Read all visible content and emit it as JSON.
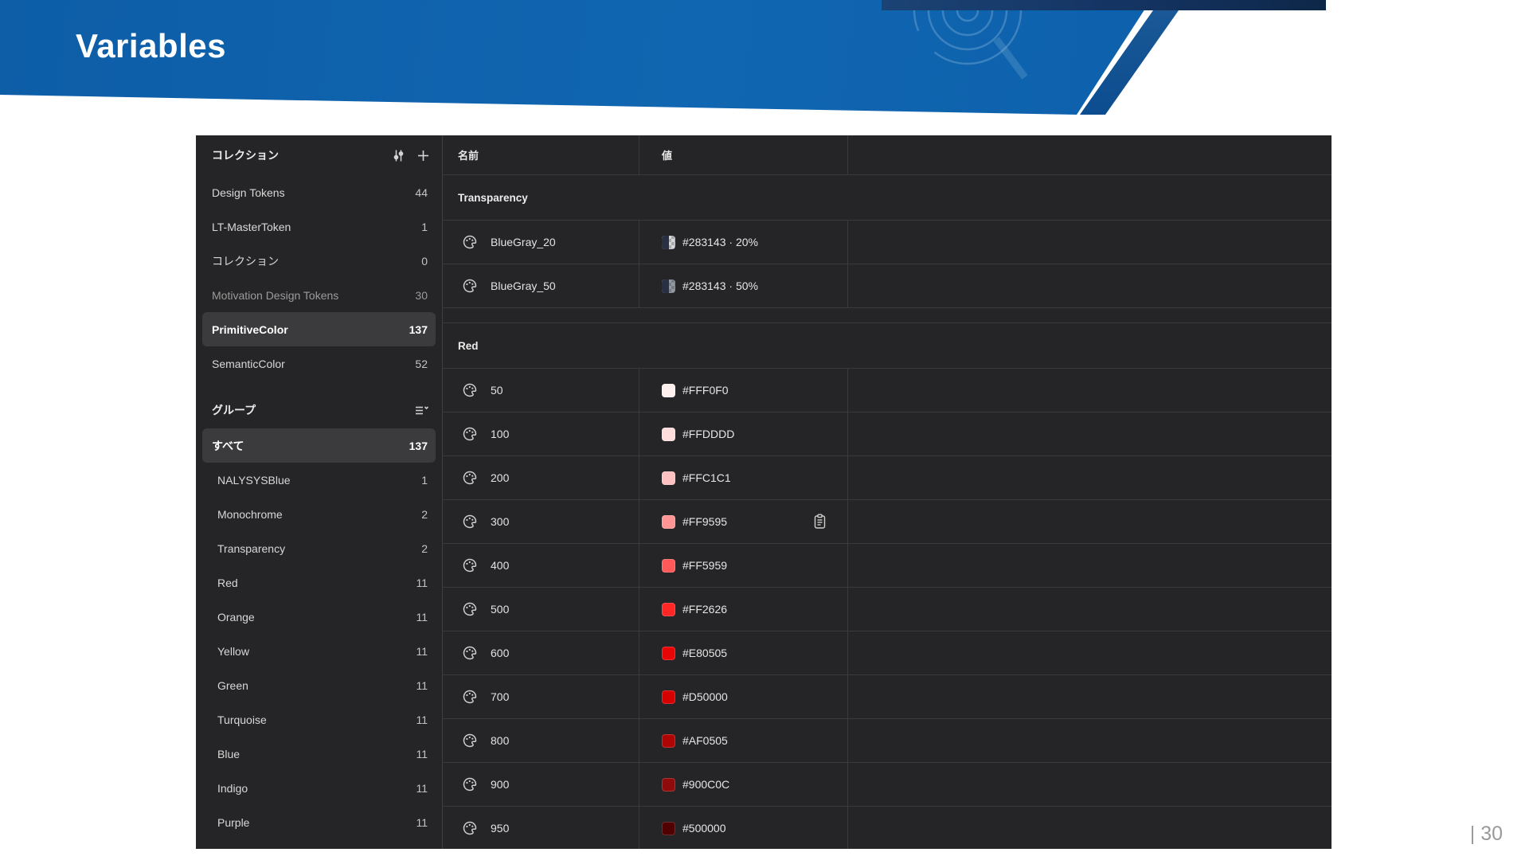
{
  "slide": {
    "title": "Variables",
    "page_number": "| 30",
    "header_colors": {
      "band_left": "#1166B1",
      "band_right": "#0A519B",
      "top_strip": "#143463",
      "diagonal_stripe": "#12538F"
    }
  },
  "panel": {
    "ui_colors": {
      "panel_bg": "#252527",
      "divider": "#3A3A3D",
      "selected_blue_bg": "#45516C",
      "selected_gray_bg": "#3B3B3D"
    },
    "collections": {
      "title": "コレクション",
      "header_icons": [
        "filter-sliders-icon",
        "add-icon"
      ],
      "items": [
        {
          "label": "Design Tokens",
          "count": "44",
          "state": "normal"
        },
        {
          "label": "LT-MasterToken",
          "count": "1",
          "state": "normal"
        },
        {
          "label": "コレクション",
          "count": "0",
          "state": "normal"
        },
        {
          "label": "Motivation Design Tokens",
          "count": "30",
          "state": "dim"
        },
        {
          "label": "PrimitiveColor",
          "count": "137",
          "state": "selected"
        },
        {
          "label": "SemanticColor",
          "count": "52",
          "state": "normal"
        }
      ]
    },
    "groups": {
      "title": "グループ",
      "header_icons": [
        "collapse-groups-icon"
      ],
      "items": [
        {
          "label": "すべて",
          "count": "137",
          "state": "selected"
        },
        {
          "label": "NALYSYSBlue",
          "count": "1",
          "state": "normal"
        },
        {
          "label": "Monochrome",
          "count": "2",
          "state": "normal"
        },
        {
          "label": "Transparency",
          "count": "2",
          "state": "normal"
        },
        {
          "label": "Red",
          "count": "11",
          "state": "normal"
        },
        {
          "label": "Orange",
          "count": "11",
          "state": "normal"
        },
        {
          "label": "Yellow",
          "count": "11",
          "state": "normal"
        },
        {
          "label": "Green",
          "count": "11",
          "state": "normal"
        },
        {
          "label": "Turquoise",
          "count": "11",
          "state": "normal"
        },
        {
          "label": "Blue",
          "count": "11",
          "state": "normal"
        },
        {
          "label": "Indigo",
          "count": "11",
          "state": "normal"
        },
        {
          "label": "Purple",
          "count": "11",
          "state": "normal"
        }
      ]
    },
    "table": {
      "columns": [
        "名前",
        "値"
      ],
      "row_icon": "palette-icon",
      "sections": [
        {
          "name": "Transparency",
          "rows": [
            {
              "name": "BlueGray_20",
              "value": "#283143 · 20%",
              "color": "#283143",
              "alpha": 0.2,
              "swatch": "alpha",
              "library_icon": false
            },
            {
              "name": "BlueGray_50",
              "value": "#283143 · 50%",
              "color": "#283143",
              "alpha": 0.5,
              "swatch": "alpha",
              "library_icon": false
            }
          ]
        },
        {
          "name": "Red",
          "rows": [
            {
              "name": "50",
              "value": "#FFF0F0",
              "color": "#FFF0F0",
              "swatch": "solid",
              "library_icon": false
            },
            {
              "name": "100",
              "value": "#FFDDDD",
              "color": "#FFDDDD",
              "swatch": "solid",
              "library_icon": false
            },
            {
              "name": "200",
              "value": "#FFC1C1",
              "color": "#FFC1C1",
              "swatch": "solid",
              "library_icon": false
            },
            {
              "name": "300",
              "value": "#FF9595",
              "color": "#FF9595",
              "swatch": "solid",
              "library_icon": true
            },
            {
              "name": "400",
              "value": "#FF5959",
              "color": "#FF5959",
              "swatch": "solid",
              "library_icon": false
            },
            {
              "name": "500",
              "value": "#FF2626",
              "color": "#FF2626",
              "swatch": "solid",
              "library_icon": false
            },
            {
              "name": "600",
              "value": "#E80505",
              "color": "#E80505",
              "swatch": "solid",
              "library_icon": false
            },
            {
              "name": "700",
              "value": "#D50000",
              "color": "#D50000",
              "swatch": "solid",
              "library_icon": false
            },
            {
              "name": "800",
              "value": "#AF0505",
              "color": "#AF0505",
              "swatch": "solid",
              "library_icon": false
            },
            {
              "name": "900",
              "value": "#900C0C",
              "color": "#900C0C",
              "swatch": "solid",
              "library_icon": false
            },
            {
              "name": "950",
              "value": "#500000",
              "color": "#500000",
              "swatch": "solid",
              "library_icon": false
            }
          ]
        }
      ]
    }
  }
}
